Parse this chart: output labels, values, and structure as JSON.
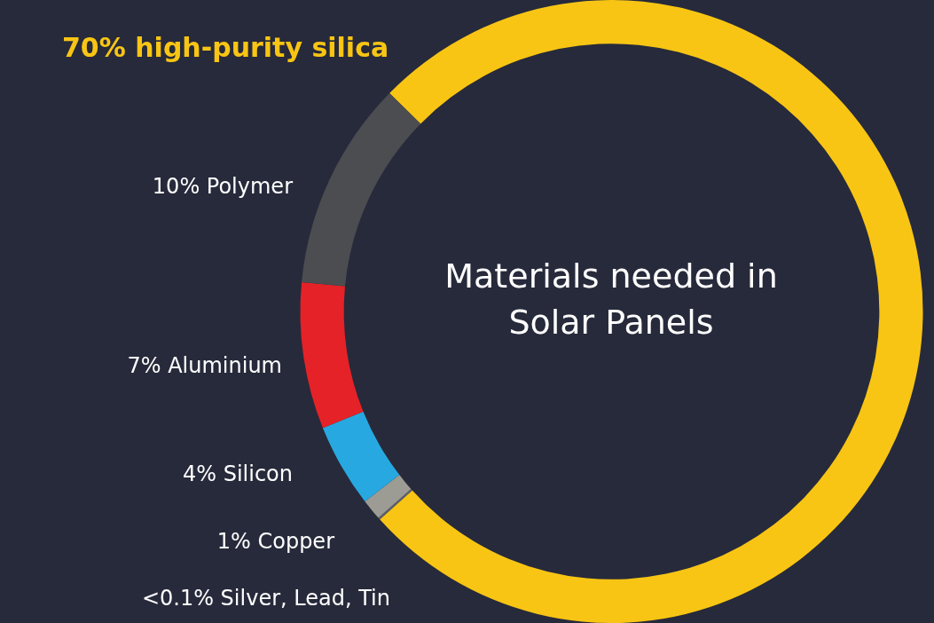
{
  "chart_data": {
    "type": "donut",
    "title": "Materials needed in Solar Panels",
    "categories": [
      "70% high-purity silica",
      "<0.1% Silver, Lead, Tin",
      "1% Copper",
      "4% Silicon",
      "7% Aluminium",
      "10% Polymer"
    ],
    "values": [
      70,
      0.1,
      1,
      4,
      7,
      10
    ],
    "colors": [
      "#f8c514",
      "#5d606b",
      "#9c9c94",
      "#27a8e0",
      "#e52227",
      "#4b4d50"
    ],
    "legend": false
  }
}
